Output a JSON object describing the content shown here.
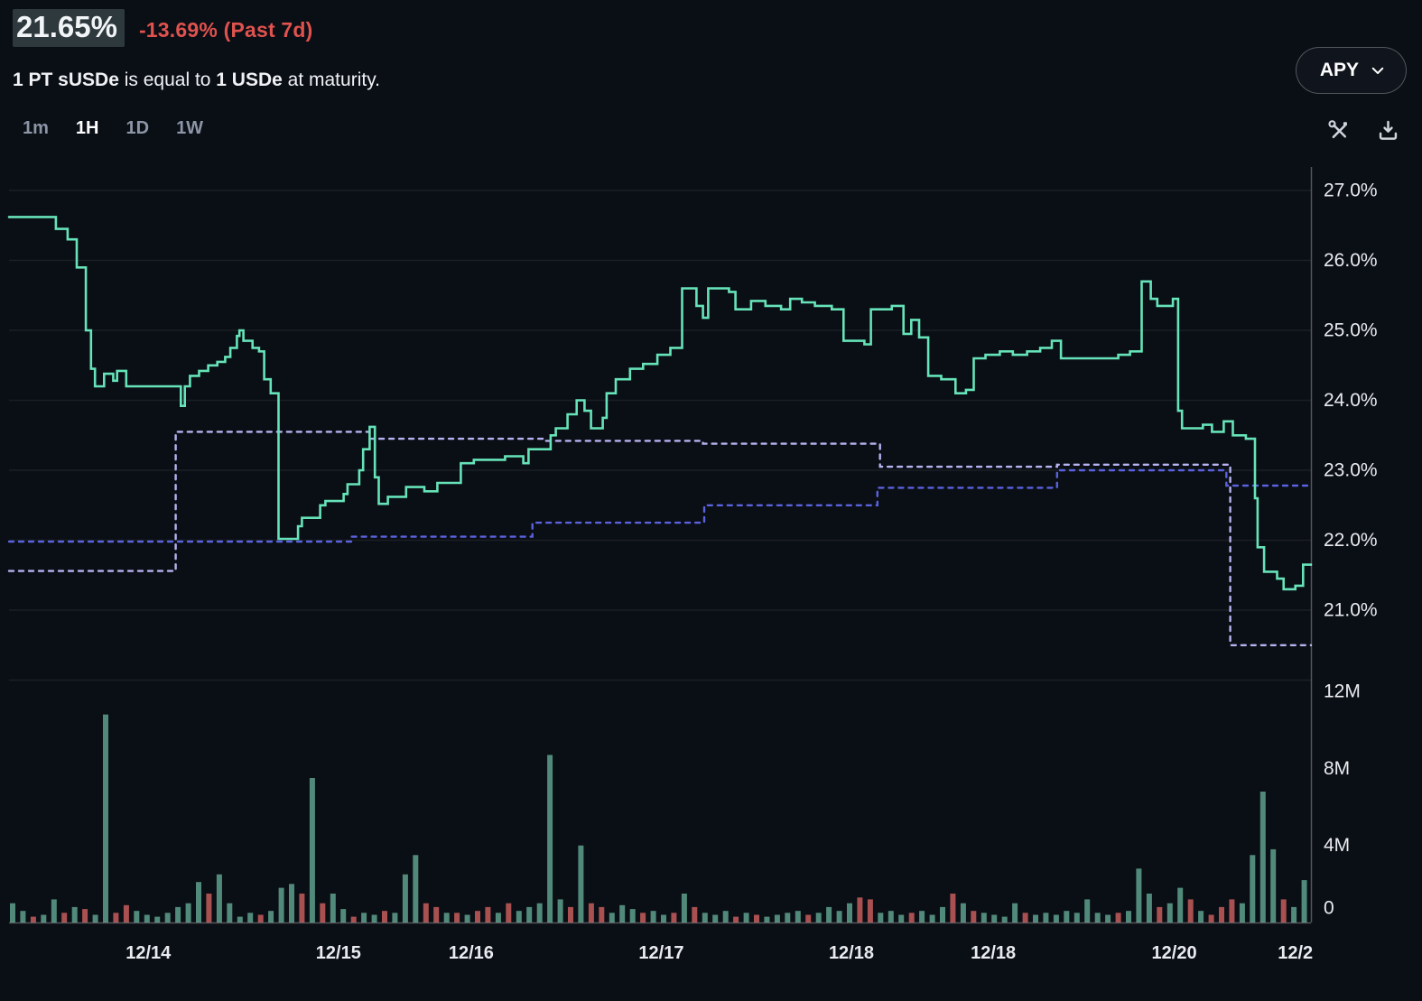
{
  "header": {
    "apy_value": "21.65%",
    "apy_change": "-13.69% (Past 7d)",
    "subtitle": {
      "b1": "1 PT sUSDe",
      "t1": " is equal to ",
      "b2": "1 USDe",
      "t2": " at maturity."
    },
    "apy_selector_label": "APY"
  },
  "toolbar": {
    "ranges": [
      {
        "label": "1m",
        "active": false
      },
      {
        "label": "1H",
        "active": true
      },
      {
        "label": "1D",
        "active": false
      },
      {
        "label": "1W",
        "active": false
      }
    ],
    "icons": [
      {
        "name": "tools-icon"
      },
      {
        "name": "download-icon"
      }
    ]
  },
  "chart_data": {
    "type": "line",
    "panels": [
      "apy",
      "volume"
    ],
    "legend": "none",
    "grid": "horizontal",
    "colors": {
      "line": "#66e3b8",
      "dashed_upper": "#b7b2f0",
      "dashed_lower": "#5a62dd",
      "vol_up": "#55917f",
      "vol_down": "#b25454",
      "grid": "rgba(255,255,255,0.07)",
      "axis": "rgba(255,255,255,0.30)",
      "label": "#e9ebef"
    },
    "price_axis": {
      "range": [
        20.0,
        27.34
      ],
      "ticks": [
        {
          "label": "27.0%",
          "value": 27.0
        },
        {
          "label": "26.0%",
          "value": 26.0
        },
        {
          "label": "25.0%",
          "value": 25.0
        },
        {
          "label": "24.0%",
          "value": 24.0
        },
        {
          "label": "23.0%",
          "value": 23.0
        },
        {
          "label": "22.0%",
          "value": 22.0
        },
        {
          "label": "21.0%",
          "value": 21.0
        }
      ]
    },
    "volume_axis": {
      "range": [
        0,
        12.6
      ],
      "unit": "M",
      "ticks": [
        {
          "label": "12M",
          "value": 12
        },
        {
          "label": "8M",
          "value": 8
        },
        {
          "label": "4M",
          "value": 4
        },
        {
          "label": "0",
          "value": 0
        }
      ]
    },
    "x_axis": {
      "ticks": [
        {
          "label": "12/14",
          "t": 0.107
        },
        {
          "label": "12/15",
          "t": 0.253
        },
        {
          "label": "12/16",
          "t": 0.355
        },
        {
          "label": "12/17",
          "t": 0.501
        },
        {
          "label": "12/18",
          "t": 0.647
        },
        {
          "label": "12/18",
          "t": 0.756
        },
        {
          "label": "12/20",
          "t": 0.895
        },
        {
          "label": "12/2",
          "t": 0.988
        }
      ]
    },
    "series": [
      {
        "name": "apy",
        "type": "step-line",
        "style": "solid",
        "points": [
          [
            0,
            26.62
          ],
          [
            0.036,
            26.45
          ],
          [
            0.045,
            26.3
          ],
          [
            0.052,
            25.9
          ],
          [
            0.059,
            25.0
          ],
          [
            0.063,
            24.45
          ],
          [
            0.066,
            24.2
          ],
          [
            0.073,
            24.38
          ],
          [
            0.08,
            24.28
          ],
          [
            0.083,
            24.42
          ],
          [
            0.09,
            24.2
          ],
          [
            0.132,
            23.92
          ],
          [
            0.135,
            24.2
          ],
          [
            0.139,
            24.35
          ],
          [
            0.146,
            24.42
          ],
          [
            0.153,
            24.5
          ],
          [
            0.16,
            24.55
          ],
          [
            0.166,
            24.62
          ],
          [
            0.17,
            24.75
          ],
          [
            0.175,
            24.92
          ],
          [
            0.177,
            25.0
          ],
          [
            0.18,
            24.85
          ],
          [
            0.187,
            24.75
          ],
          [
            0.192,
            24.7
          ],
          [
            0.196,
            24.3
          ],
          [
            0.201,
            24.1
          ],
          [
            0.207,
            22.02
          ],
          [
            0.222,
            22.2
          ],
          [
            0.225,
            22.32
          ],
          [
            0.239,
            22.5
          ],
          [
            0.243,
            22.56
          ],
          [
            0.257,
            22.66
          ],
          [
            0.26,
            22.8
          ],
          [
            0.269,
            23.0
          ],
          [
            0.272,
            23.3
          ],
          [
            0.277,
            23.62
          ],
          [
            0.281,
            22.9
          ],
          [
            0.284,
            22.52
          ],
          [
            0.291,
            22.62
          ],
          [
            0.305,
            22.76
          ],
          [
            0.319,
            22.7
          ],
          [
            0.329,
            22.82
          ],
          [
            0.347,
            23.1
          ],
          [
            0.357,
            23.15
          ],
          [
            0.381,
            23.2
          ],
          [
            0.395,
            23.1
          ],
          [
            0.399,
            23.3
          ],
          [
            0.416,
            23.5
          ],
          [
            0.42,
            23.6
          ],
          [
            0.429,
            23.8
          ],
          [
            0.436,
            24.0
          ],
          [
            0.442,
            23.85
          ],
          [
            0.447,
            23.6
          ],
          [
            0.456,
            23.75
          ],
          [
            0.459,
            24.1
          ],
          [
            0.466,
            24.3
          ],
          [
            0.477,
            24.45
          ],
          [
            0.487,
            24.52
          ],
          [
            0.498,
            24.65
          ],
          [
            0.508,
            24.75
          ],
          [
            0.517,
            25.6
          ],
          [
            0.528,
            25.35
          ],
          [
            0.533,
            25.18
          ],
          [
            0.537,
            25.6
          ],
          [
            0.553,
            25.55
          ],
          [
            0.558,
            25.3
          ],
          [
            0.57,
            25.42
          ],
          [
            0.581,
            25.35
          ],
          [
            0.593,
            25.3
          ],
          [
            0.6,
            25.45
          ],
          [
            0.609,
            25.4
          ],
          [
            0.619,
            25.35
          ],
          [
            0.632,
            25.3
          ],
          [
            0.641,
            24.85
          ],
          [
            0.657,
            24.8
          ],
          [
            0.662,
            25.3
          ],
          [
            0.678,
            25.35
          ],
          [
            0.687,
            24.95
          ],
          [
            0.693,
            25.15
          ],
          [
            0.699,
            24.9
          ],
          [
            0.706,
            24.35
          ],
          [
            0.716,
            24.3
          ],
          [
            0.727,
            24.1
          ],
          [
            0.735,
            24.15
          ],
          [
            0.741,
            24.6
          ],
          [
            0.75,
            24.65
          ],
          [
            0.761,
            24.7
          ],
          [
            0.771,
            24.65
          ],
          [
            0.782,
            24.7
          ],
          [
            0.792,
            24.75
          ],
          [
            0.801,
            24.85
          ],
          [
            0.808,
            24.6
          ],
          [
            0.852,
            24.65
          ],
          [
            0.861,
            24.7
          ],
          [
            0.87,
            25.7
          ],
          [
            0.877,
            25.45
          ],
          [
            0.882,
            25.35
          ],
          [
            0.894,
            25.45
          ],
          [
            0.898,
            23.85
          ],
          [
            0.901,
            23.6
          ],
          [
            0.917,
            23.65
          ],
          [
            0.924,
            23.55
          ],
          [
            0.933,
            23.7
          ],
          [
            0.94,
            23.5
          ],
          [
            0.95,
            23.45
          ],
          [
            0.957,
            22.6
          ],
          [
            0.959,
            21.9
          ],
          [
            0.964,
            21.55
          ],
          [
            0.974,
            21.45
          ],
          [
            0.979,
            21.3
          ],
          [
            0.988,
            21.35
          ],
          [
            0.994,
            21.65
          ],
          [
            1,
            21.65
          ]
        ]
      },
      {
        "name": "dashed-upper",
        "type": "step-line",
        "style": "dashed",
        "points": [
          [
            0,
            21.56
          ],
          [
            0.121,
            21.56
          ],
          [
            0.128,
            23.55
          ],
          [
            0.26,
            23.55
          ],
          [
            0.277,
            23.45
          ],
          [
            0.405,
            23.45
          ],
          [
            0.412,
            23.42
          ],
          [
            0.527,
            23.42
          ],
          [
            0.533,
            23.38
          ],
          [
            0.662,
            23.38
          ],
          [
            0.669,
            23.05
          ],
          [
            0.798,
            23.05
          ],
          [
            0.805,
            23.08
          ],
          [
            0.931,
            23.08
          ],
          [
            0.938,
            20.5
          ],
          [
            1,
            20.5
          ]
        ]
      },
      {
        "name": "dashed-lower",
        "type": "step-line",
        "style": "dashed",
        "points": [
          [
            0,
            21.98
          ],
          [
            0.256,
            21.98
          ],
          [
            0.263,
            22.05
          ],
          [
            0.395,
            22.05
          ],
          [
            0.402,
            22.25
          ],
          [
            0.527,
            22.25
          ],
          [
            0.534,
            22.5
          ],
          [
            0.66,
            22.5
          ],
          [
            0.667,
            22.75
          ],
          [
            0.798,
            22.75
          ],
          [
            0.805,
            23.0
          ],
          [
            0.928,
            23.0
          ],
          [
            0.935,
            22.78
          ],
          [
            1,
            22.78
          ]
        ]
      }
    ],
    "volume_bars": [
      [
        1.0,
        "g"
      ],
      [
        0.6,
        "g"
      ],
      [
        0.3,
        "r"
      ],
      [
        0.4,
        "g"
      ],
      [
        1.2,
        "g"
      ],
      [
        0.5,
        "r"
      ],
      [
        0.8,
        "g"
      ],
      [
        0.7,
        "r"
      ],
      [
        0.4,
        "g"
      ],
      [
        10.8,
        "g"
      ],
      [
        0.5,
        "r"
      ],
      [
        0.9,
        "r"
      ],
      [
        0.6,
        "g"
      ],
      [
        0.4,
        "g"
      ],
      [
        0.3,
        "g"
      ],
      [
        0.5,
        "g"
      ],
      [
        0.8,
        "g"
      ],
      [
        1.0,
        "g"
      ],
      [
        2.1,
        "g"
      ],
      [
        1.5,
        "r"
      ],
      [
        2.5,
        "g"
      ],
      [
        1.0,
        "g"
      ],
      [
        0.3,
        "g"
      ],
      [
        0.5,
        "g"
      ],
      [
        0.4,
        "r"
      ],
      [
        0.6,
        "g"
      ],
      [
        1.8,
        "g"
      ],
      [
        2.0,
        "g"
      ],
      [
        1.5,
        "r"
      ],
      [
        7.5,
        "g"
      ],
      [
        1.0,
        "r"
      ],
      [
        1.5,
        "g"
      ],
      [
        0.7,
        "g"
      ],
      [
        0.3,
        "r"
      ],
      [
        0.5,
        "g"
      ],
      [
        0.4,
        "g"
      ],
      [
        0.6,
        "r"
      ],
      [
        0.5,
        "g"
      ],
      [
        2.5,
        "g"
      ],
      [
        3.5,
        "g"
      ],
      [
        1.0,
        "r"
      ],
      [
        0.8,
        "r"
      ],
      [
        0.5,
        "g"
      ],
      [
        0.5,
        "r"
      ],
      [
        0.4,
        "g"
      ],
      [
        0.6,
        "r"
      ],
      [
        0.8,
        "r"
      ],
      [
        0.5,
        "g"
      ],
      [
        1.0,
        "r"
      ],
      [
        0.6,
        "g"
      ],
      [
        0.8,
        "g"
      ],
      [
        1.0,
        "g"
      ],
      [
        8.7,
        "g"
      ],
      [
        1.2,
        "g"
      ],
      [
        0.8,
        "r"
      ],
      [
        4.0,
        "g"
      ],
      [
        1.0,
        "r"
      ],
      [
        0.8,
        "r"
      ],
      [
        0.5,
        "g"
      ],
      [
        0.9,
        "g"
      ],
      [
        0.7,
        "g"
      ],
      [
        0.5,
        "r"
      ],
      [
        0.6,
        "g"
      ],
      [
        0.4,
        "g"
      ],
      [
        0.5,
        "r"
      ],
      [
        1.5,
        "g"
      ],
      [
        0.8,
        "r"
      ],
      [
        0.5,
        "g"
      ],
      [
        0.4,
        "g"
      ],
      [
        0.6,
        "g"
      ],
      [
        0.3,
        "r"
      ],
      [
        0.5,
        "g"
      ],
      [
        0.4,
        "r"
      ],
      [
        0.3,
        "g"
      ],
      [
        0.4,
        "g"
      ],
      [
        0.5,
        "g"
      ],
      [
        0.6,
        "g"
      ],
      [
        0.4,
        "r"
      ],
      [
        0.5,
        "g"
      ],
      [
        0.8,
        "g"
      ],
      [
        0.6,
        "g"
      ],
      [
        1.0,
        "g"
      ],
      [
        1.3,
        "r"
      ],
      [
        1.2,
        "r"
      ],
      [
        0.5,
        "g"
      ],
      [
        0.6,
        "g"
      ],
      [
        0.4,
        "g"
      ],
      [
        0.5,
        "r"
      ],
      [
        0.6,
        "g"
      ],
      [
        0.4,
        "g"
      ],
      [
        0.8,
        "g"
      ],
      [
        1.5,
        "r"
      ],
      [
        1.0,
        "g"
      ],
      [
        0.6,
        "r"
      ],
      [
        0.5,
        "g"
      ],
      [
        0.4,
        "g"
      ],
      [
        0.3,
        "g"
      ],
      [
        1.0,
        "g"
      ],
      [
        0.5,
        "r"
      ],
      [
        0.4,
        "g"
      ],
      [
        0.5,
        "g"
      ],
      [
        0.4,
        "g"
      ],
      [
        0.6,
        "g"
      ],
      [
        0.5,
        "g"
      ],
      [
        1.2,
        "g"
      ],
      [
        0.5,
        "g"
      ],
      [
        0.4,
        "g"
      ],
      [
        0.5,
        "r"
      ],
      [
        0.6,
        "g"
      ],
      [
        2.8,
        "g"
      ],
      [
        1.5,
        "g"
      ],
      [
        0.8,
        "r"
      ],
      [
        1.0,
        "g"
      ],
      [
        1.8,
        "g"
      ],
      [
        1.2,
        "r"
      ],
      [
        0.6,
        "g"
      ],
      [
        0.4,
        "r"
      ],
      [
        0.8,
        "r"
      ],
      [
        1.2,
        "r"
      ],
      [
        1.0,
        "g"
      ],
      [
        3.5,
        "g"
      ],
      [
        6.8,
        "g"
      ],
      [
        3.8,
        "g"
      ],
      [
        1.2,
        "r"
      ],
      [
        0.8,
        "g"
      ],
      [
        2.2,
        "g"
      ]
    ]
  }
}
